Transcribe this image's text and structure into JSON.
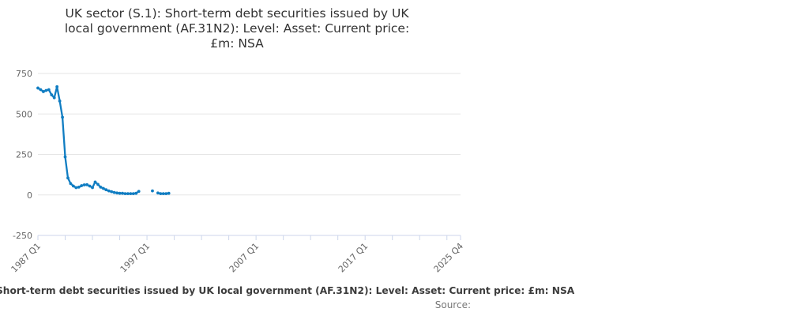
{
  "title": {
    "text": "UK sector (S.1): Short-term debt securities issued by UK local government (AF.31N2): Level: Asset: Current price: £m: NSA",
    "lines": [
      "UK sector (S.1): Short-term debt securities issued by UK",
      "local government (AF.31N2): Level: Asset: Current price:",
      "£m: NSA"
    ]
  },
  "legend": {
    "label": "Short-term debt securities issued by UK local government (AF.31N2): Level: Asset: Current price: £m: NSA"
  },
  "footer": {
    "source_label": "Source:"
  },
  "colors": {
    "line": "#107dc2",
    "grid": "#e6e6e6",
    "axis": "#ccd6eb",
    "tick_text": "#666666",
    "title_text": "#333333",
    "legend_text": "#3c3c3c",
    "source_text": "#777777"
  },
  "chart_data": {
    "type": "line",
    "title": "UK sector (S.1): Short-term debt securities issued by UK local government (AF.31N2): Level: Asset: Current price: £m: NSA",
    "xlabel": "",
    "ylabel": "",
    "ylim": [
      -250,
      750
    ],
    "y_ticks": [
      750,
      500,
      250,
      0,
      -250
    ],
    "grid": "horizontal",
    "legend_position": "bottom",
    "x_range_quarters": 155,
    "minor_tick_step_quarters": 10,
    "x_ticks": [
      {
        "q": 0,
        "label": "1987 Q1"
      },
      {
        "q": 40,
        "label": "1997 Q1"
      },
      {
        "q": 80,
        "label": "2007 Q1"
      },
      {
        "q": 120,
        "label": "2017 Q1"
      },
      {
        "q": 155,
        "label": "2025 Q4"
      }
    ],
    "series": [
      {
        "name": "Short-term debt securities issued by UK local government (AF.31N2): Level: Asset: Current price: £m: NSA",
        "x": [
          "1987 Q1",
          "1987 Q2",
          "1987 Q3",
          "1987 Q4",
          "1988 Q1",
          "1988 Q2",
          "1988 Q3",
          "1988 Q4",
          "1989 Q1",
          "1989 Q2",
          "1989 Q3",
          "1989 Q4",
          "1990 Q1",
          "1990 Q2",
          "1990 Q3",
          "1990 Q4",
          "1991 Q1",
          "1991 Q2",
          "1991 Q3",
          "1991 Q4",
          "1992 Q1",
          "1992 Q2",
          "1992 Q3",
          "1992 Q4",
          "1993 Q1",
          "1993 Q2",
          "1993 Q3",
          "1993 Q4",
          "1994 Q1",
          "1994 Q2",
          "1994 Q3",
          "1994 Q4",
          "1995 Q1",
          "1995 Q2",
          "1995 Q3",
          "1995 Q4",
          "1996 Q1",
          "1996 Q2",
          "1996 Q3",
          "1996 Q4",
          "1997 Q1",
          "1997 Q2",
          "1997 Q3",
          "1997 Q4",
          "1998 Q1",
          "1998 Q2",
          "1998 Q3",
          "1998 Q4",
          "1999 Q1"
        ],
        "values": [
          660,
          650,
          638,
          645,
          650,
          618,
          600,
          668,
          580,
          480,
          235,
          105,
          70,
          55,
          45,
          48,
          57,
          62,
          63,
          55,
          45,
          80,
          65,
          48,
          40,
          32,
          25,
          20,
          15,
          12,
          10,
          10,
          8,
          8,
          8,
          8,
          10,
          22,
          null,
          null,
          null,
          null,
          25,
          null,
          12,
          8,
          8,
          8,
          10
        ]
      }
    ]
  }
}
